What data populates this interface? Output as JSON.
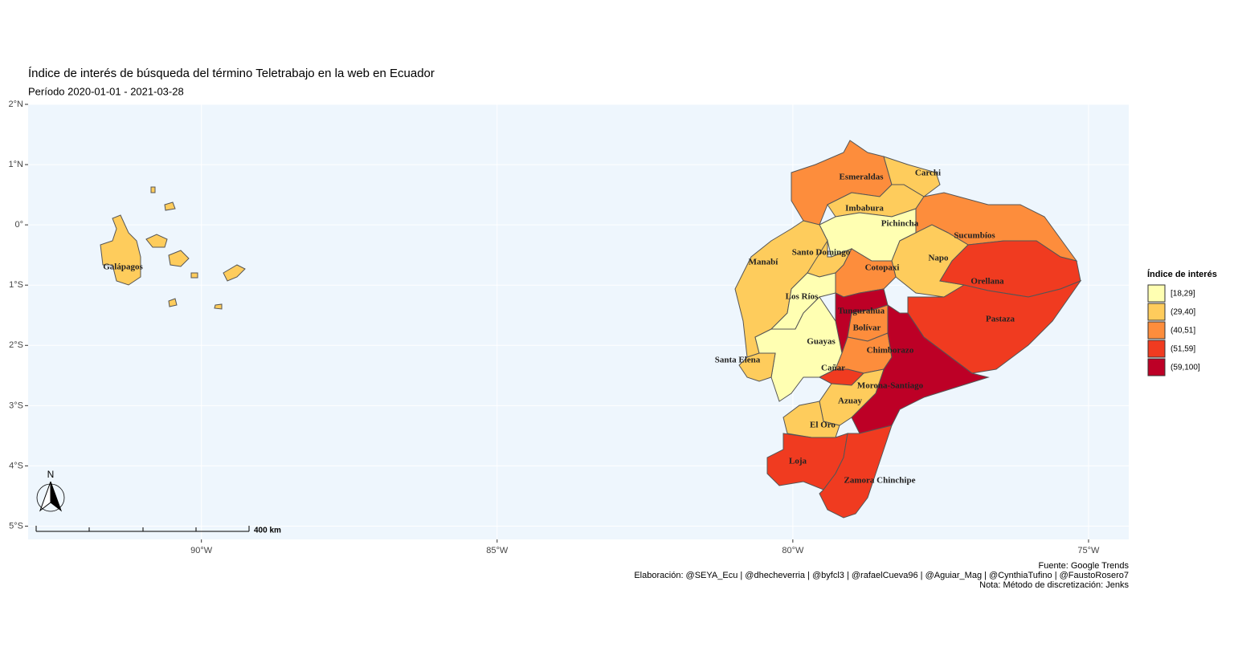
{
  "map": {
    "title": "Índice de interés de búsqueda del término Teletrabajo en la web en Ecuador",
    "subtitle": "Período 2020-01-01 - 2021-03-28",
    "axes": {
      "xlim": [
        -92.93,
        -74.32
      ],
      "ylim": [
        -5.22,
        2.0
      ],
      "xticks": [
        {
          "value": -90,
          "label": "90°W"
        },
        {
          "value": -85,
          "label": "85°W"
        },
        {
          "value": -80,
          "label": "80°W"
        },
        {
          "value": -75,
          "label": "75°W"
        }
      ],
      "yticks": [
        {
          "value": 2,
          "label": "2°N"
        },
        {
          "value": 1,
          "label": "1°N"
        },
        {
          "value": 0,
          "label": "0°"
        },
        {
          "value": -1,
          "label": "1°S"
        },
        {
          "value": -2,
          "label": "2°S"
        },
        {
          "value": -3,
          "label": "3°S"
        },
        {
          "value": -4,
          "label": "4°S"
        },
        {
          "value": -5,
          "label": "5°S"
        }
      ]
    },
    "legend": {
      "title": "Índice de interés",
      "items": [
        {
          "label": "[18,29]",
          "color": "#FFFFB2"
        },
        {
          "label": "(29,40]",
          "color": "#FECC5C"
        },
        {
          "label": "(40,51]",
          "color": "#FD8D3C"
        },
        {
          "label": "(51,59]",
          "color": "#F03B20"
        },
        {
          "label": "(59,100]",
          "color": "#BD0026"
        }
      ]
    },
    "provinces": [
      {
        "name": "Esmeraldas",
        "color": "#FD8D3C"
      },
      {
        "name": "Carchi",
        "color": "#FECC5C"
      },
      {
        "name": "Imbabura",
        "color": "#FECC5C"
      },
      {
        "name": "Pichincha",
        "color": "#FFFFB2"
      },
      {
        "name": "Sucumbíos",
        "color": "#FD8D3C"
      },
      {
        "name": "Napo",
        "color": "#FECC5C"
      },
      {
        "name": "Orellana",
        "color": "#F03B20"
      },
      {
        "name": "Pastaza",
        "color": "#F03B20"
      },
      {
        "name": "Manabí",
        "color": "#FECC5C"
      },
      {
        "name": "Santo Domingo",
        "color": "#FECC5C"
      },
      {
        "name": "Cotopaxi",
        "color": "#FD8D3C"
      },
      {
        "name": "Los Ríos",
        "color": "#FFFFB2"
      },
      {
        "name": "Tungurahua",
        "color": "#BD0026"
      },
      {
        "name": "Bolívar",
        "color": "#FD8D3C"
      },
      {
        "name": "Guayas",
        "color": "#FFFFB2"
      },
      {
        "name": "Santa Elena",
        "color": "#FECC5C"
      },
      {
        "name": "Chimborazo",
        "color": "#FD8D3C"
      },
      {
        "name": "Cañar",
        "color": "#F03B20"
      },
      {
        "name": "Morona-Santiago",
        "color": "#BD0026"
      },
      {
        "name": "Azuay",
        "color": "#FECC5C"
      },
      {
        "name": "El Oro",
        "color": "#FECC5C"
      },
      {
        "name": "Loja",
        "color": "#F03B20"
      },
      {
        "name": "Zamora Chinchipe",
        "color": "#F03B20"
      },
      {
        "name": "Galápagos",
        "color": "#FECC5C"
      }
    ],
    "north_label": "N",
    "scale_label": "400 km",
    "caption": [
      "Fuente: Google Trends",
      "Elaboración: @SEYA_Ecu | @dhecheverria | @byfcl3 | @rafaelCueva96 | @Aguiar_Mag | @CynthiaTufino | @FaustoRosero7",
      "Nota: Método de discretización: Jenks"
    ]
  }
}
